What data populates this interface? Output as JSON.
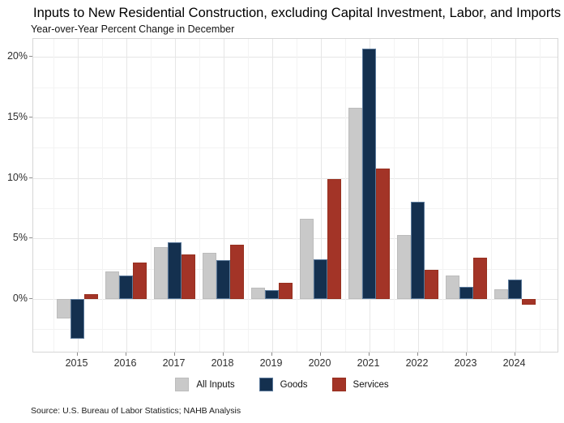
{
  "header": {
    "title": "Inputs to New Residential Construction, excluding Capital Investment, Labor, and Imports",
    "subtitle": "Year-over-Year Percent Change in December"
  },
  "footer": {
    "source": "Source: U.S. Bureau of Labor Statistics; NAHB Analysis"
  },
  "chart_data": {
    "type": "bar",
    "title": "Inputs to New Residential Construction, excluding Capital Investment, Labor, and Imports",
    "subtitle": "Year-over-Year Percent Change in December",
    "categories": [
      "2015",
      "2016",
      "2017",
      "2018",
      "2019",
      "2020",
      "2021",
      "2022",
      "2023",
      "2024"
    ],
    "series": [
      {
        "name": "All Inputs",
        "color": "#c9c9c9",
        "edge": "#bcbcbc",
        "values": [
          -1.6,
          2.3,
          4.3,
          3.8,
          0.9,
          6.6,
          15.8,
          5.3,
          1.9,
          0.8
        ]
      },
      {
        "name": "Goods",
        "color": "#14304f",
        "edge": "#5c7a9b",
        "values": [
          -3.3,
          1.9,
          4.7,
          3.2,
          0.7,
          3.3,
          20.7,
          8.0,
          1.0,
          1.6
        ]
      },
      {
        "name": "Services",
        "color": "#a33427",
        "edge": "#97301f",
        "values": [
          0.4,
          3.0,
          3.7,
          4.5,
          1.3,
          9.9,
          10.8,
          2.4,
          3.4,
          -0.5
        ]
      }
    ],
    "xlabel": "",
    "ylabel": "",
    "yticks": [
      0,
      5,
      10,
      15,
      20
    ],
    "ytick_minor": [
      -2.5,
      2.5,
      7.5,
      12.5,
      17.5
    ],
    "ytick_suffix": "%",
    "ylim": [
      -4.5,
      21.5
    ],
    "grid": "major+minor horizontal and vertical, light gray",
    "legend_position": "bottom-center"
  }
}
